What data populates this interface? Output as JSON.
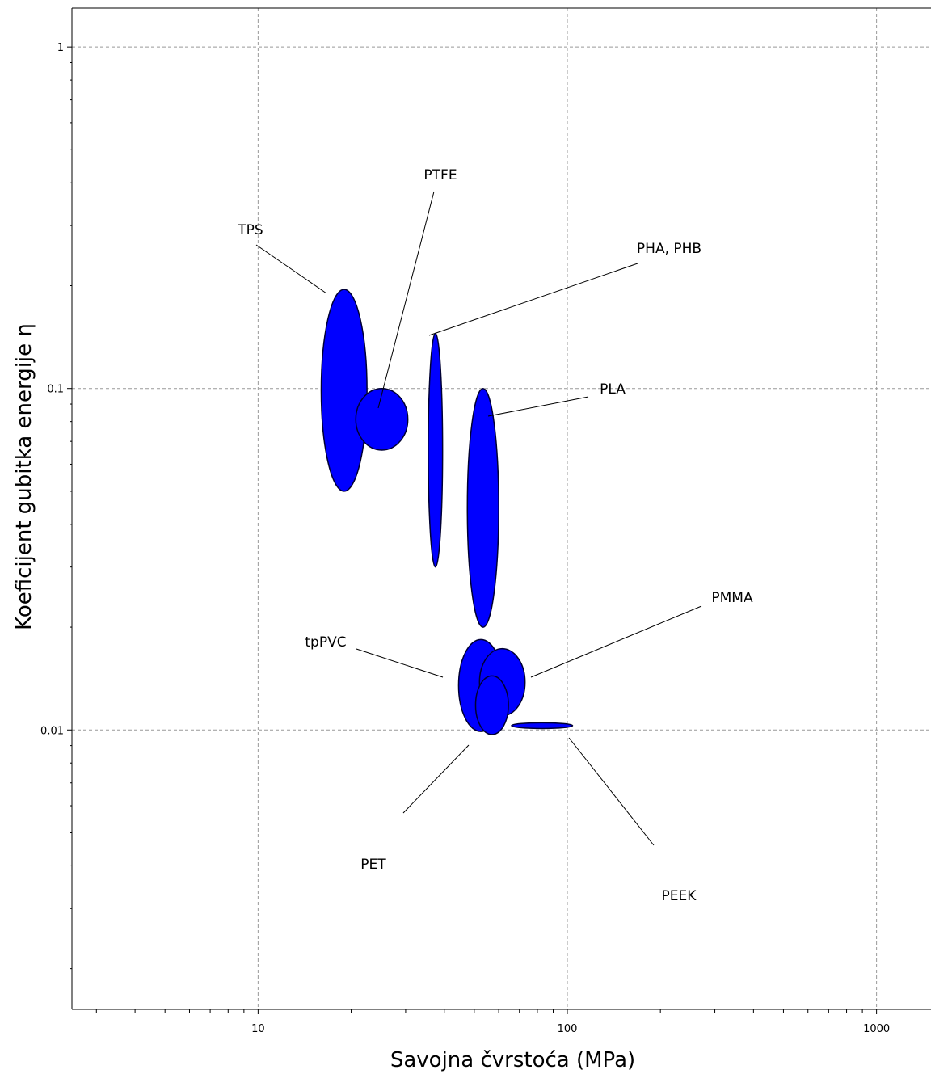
{
  "chart_data": {
    "type": "scatter",
    "title": "",
    "xlabel": "Savojna čvrstoća (MPa)",
    "ylabel": "Koeficijent gubitka energije η",
    "x_scale": "log",
    "y_scale": "log",
    "xlim": [
      2.5,
      1500
    ],
    "ylim": [
      0.00152,
      1.3
    ],
    "grid": true,
    "x_ticks": [
      {
        "value": 10,
        "label": "10"
      },
      {
        "value": 100,
        "label": "100"
      },
      {
        "value": 1000,
        "label": "1000"
      }
    ],
    "y_ticks": [
      {
        "value": 1,
        "label": "1"
      },
      {
        "value": 0.1,
        "label": "0.1"
      },
      {
        "value": 0.01,
        "label": "0.01"
      }
    ],
    "series_color": "#0000ff",
    "materials": [
      {
        "name": "TPS",
        "x_range": [
          16,
          22.5
        ],
        "y_range": [
          0.05,
          0.195
        ]
      },
      {
        "name": "PTFE",
        "x_range": [
          20.7,
          30.5
        ],
        "y_range": [
          0.066,
          0.1
        ]
      },
      {
        "name": "PHA, PHB",
        "x_range": [
          35.5,
          39.5
        ],
        "y_range": [
          0.03,
          0.145
        ]
      },
      {
        "name": "PLA",
        "x_range": [
          47.5,
          60
        ],
        "y_range": [
          0.02,
          0.1
        ]
      },
      {
        "name": "tpPVC",
        "x_range": [
          44.5,
          62
        ],
        "y_range": [
          0.0099,
          0.0184
        ]
      },
      {
        "name": "PMMA",
        "x_range": [
          52,
          73
        ],
        "y_range": [
          0.011,
          0.0173
        ]
      },
      {
        "name": "PET",
        "x_range": [
          50.5,
          64.5
        ],
        "y_range": [
          0.0097,
          0.0144
        ]
      },
      {
        "name": "PEEK",
        "x_range": [
          66,
          104
        ],
        "y_range": [
          0.0101,
          0.0105
        ]
      }
    ]
  }
}
